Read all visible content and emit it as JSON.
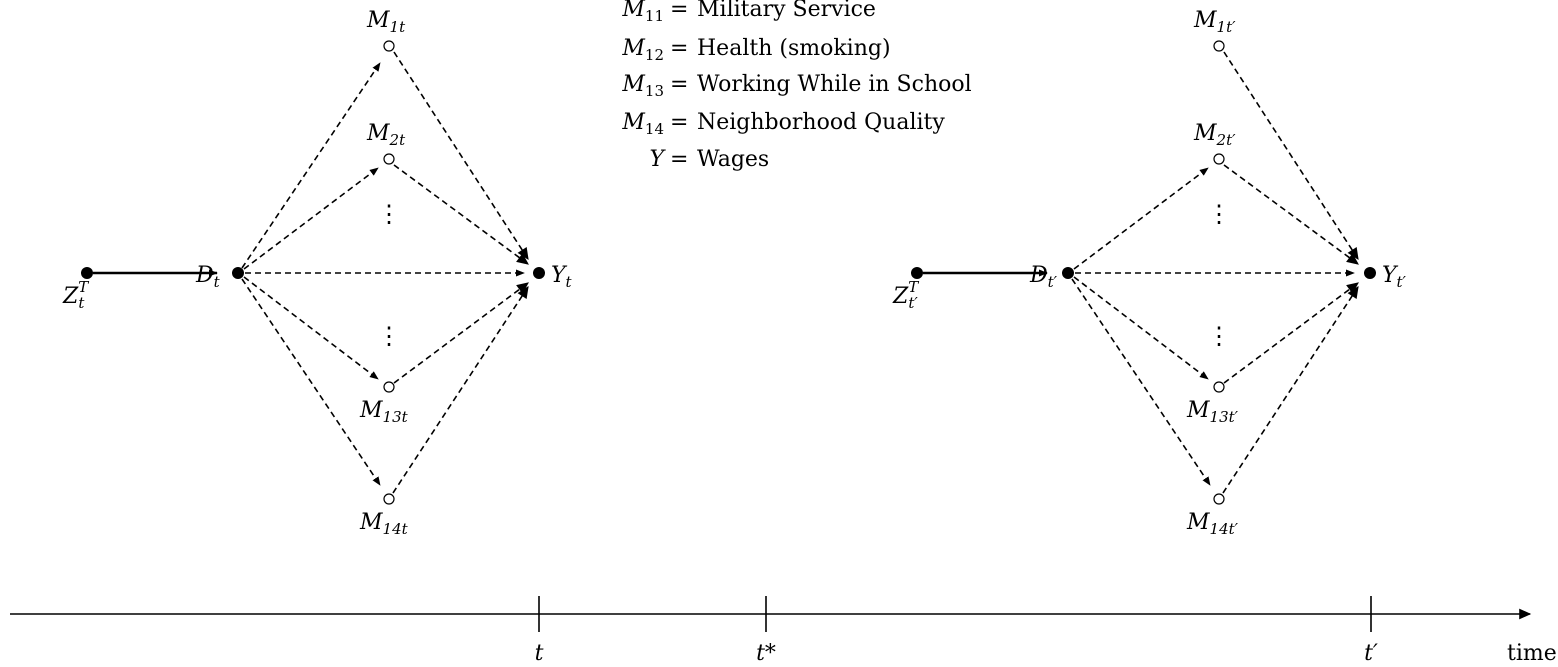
{
  "legend": [
    {
      "sym": "M",
      "sub": "11",
      "text": "Military Service"
    },
    {
      "sym": "M",
      "sub": "12",
      "text": "Health (smoking)"
    },
    {
      "sym": "M",
      "sub": "13",
      "text": "Working While in School"
    },
    {
      "sym": "M",
      "sub": "14",
      "text": "Neighborhood Quality"
    },
    {
      "sym": "Y",
      "sub": "",
      "text": "Wages"
    }
  ],
  "legend_eq": "=",
  "vertical_ellipsis": "⋮",
  "panels": [
    {
      "z": {
        "sym": "Z",
        "sub": "t",
        "sup": "T"
      },
      "d": {
        "sym": "D",
        "sub": "t"
      },
      "y": {
        "sym": "Y",
        "sub": "t"
      },
      "mediators": [
        {
          "sym": "M",
          "sub": "1t"
        },
        {
          "sym": "M",
          "sub": "2t"
        },
        {
          "sym": "M",
          "sub": "13t"
        },
        {
          "sym": "M",
          "sub": "14t"
        }
      ]
    },
    {
      "z": {
        "sym": "Z",
        "sub": "t′",
        "sup": "T"
      },
      "d": {
        "sym": "D",
        "sub": "t′"
      },
      "y": {
        "sym": "Y",
        "sub": "t′"
      },
      "mediators": [
        {
          "sym": "M",
          "sub": "1t′"
        },
        {
          "sym": "M",
          "sub": "2t′"
        },
        {
          "sym": "M",
          "sub": "13t′"
        },
        {
          "sym": "M",
          "sub": "14t′"
        }
      ]
    }
  ],
  "timeline": {
    "ticks": [
      "t",
      "t*",
      "t′"
    ],
    "axis_label": "time"
  },
  "colors": {
    "ink": "#000000",
    "background": "#ffffff"
  }
}
